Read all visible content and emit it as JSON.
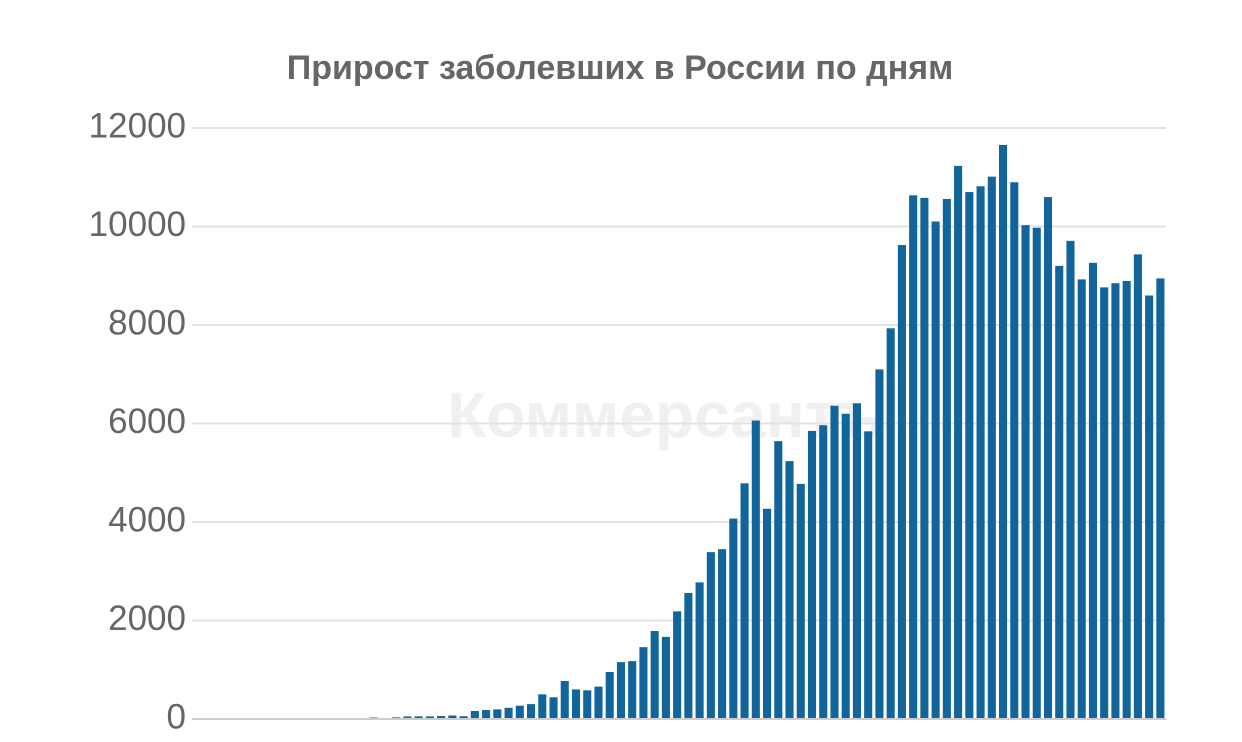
{
  "chart_data": {
    "type": "bar",
    "title": "Прирост заболевших в России по дням",
    "watermark": "Коммерсантъ",
    "categories": [
      null,
      null,
      null,
      null,
      null,
      null,
      null,
      null,
      null,
      null,
      null,
      null,
      null,
      null,
      null,
      null,
      null,
      null,
      null,
      null,
      null,
      null,
      null,
      null,
      null,
      null,
      null,
      null,
      null,
      null,
      null,
      null,
      null,
      null,
      null,
      null,
      null,
      null,
      null,
      null,
      null,
      null,
      null,
      null,
      null,
      null,
      null,
      null,
      null,
      null,
      null,
      null,
      null,
      null,
      null,
      null,
      null,
      null,
      null,
      null,
      null,
      null,
      null,
      null,
      null,
      null,
      null,
      null,
      null,
      null,
      null,
      null,
      null,
      null,
      null,
      null,
      null,
      null,
      null,
      null,
      null,
      null,
      null,
      null
    ],
    "values": [
      0,
      0,
      1,
      6,
      3,
      4,
      0,
      3,
      8,
      6,
      11,
      14,
      4,
      30,
      21,
      33,
      52,
      54,
      53,
      61,
      71,
      57,
      163,
      182,
      196,
      228,
      270,
      302,
      501,
      440,
      771,
      601,
      582,
      658,
      954,
      1154,
      1175,
      1459,
      1786,
      1667,
      2186,
      2558,
      2774,
      3388,
      3448,
      4070,
      4785,
      6060,
      4268,
      5642,
      5236,
      4774,
      5849,
      5966,
      6361,
      6198,
      6411,
      5841,
      7099,
      7933,
      9623,
      10633,
      10581,
      10102,
      10559,
      11231,
      10699,
      10817,
      11012,
      11656,
      10899,
      10028,
      9974,
      10598,
      9200,
      9709,
      8926,
      9263,
      8764,
      8849,
      8894,
      9434,
      8599,
      8946
    ],
    "color": "#11659b",
    "ylim": [
      0,
      12000
    ],
    "yticks": [
      0,
      2000,
      4000,
      6000,
      8000,
      10000,
      12000
    ],
    "grid": true
  }
}
